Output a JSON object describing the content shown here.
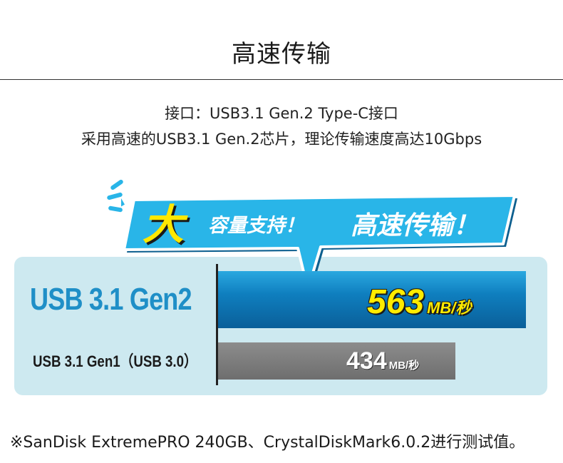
{
  "page": {
    "title": "高速传输",
    "desc_line1": "接口：USB3.1 Gen.2 Type-C接口",
    "desc_line2": "采用高速的USB3.1 Gen.2芯片，理论传输速度高达10Gbps"
  },
  "banner": {
    "big_char": "大",
    "text1": "容量支持！",
    "text2": "高速传输！"
  },
  "comparison": {
    "rows": [
      {
        "label": "USB 3.1 Gen2",
        "value": "563",
        "unit": "MB/秒",
        "relative": 1.0
      },
      {
        "label": "USB 3.1 Gen1（USB 3.0）",
        "value": "434",
        "unit": "MB/秒",
        "relative": 0.77
      }
    ]
  },
  "footnote": "※SanDisk ExtremePRO 240GB、CrystalDiskMark6.0.2进行测试值。",
  "colors": {
    "accent_blue": "#1f8fc7",
    "banner_blue": "#29b5e8",
    "highlight_yellow": "#ffe800",
    "panel_bg": "#cde9f0",
    "bar_gray": "#777777"
  }
}
